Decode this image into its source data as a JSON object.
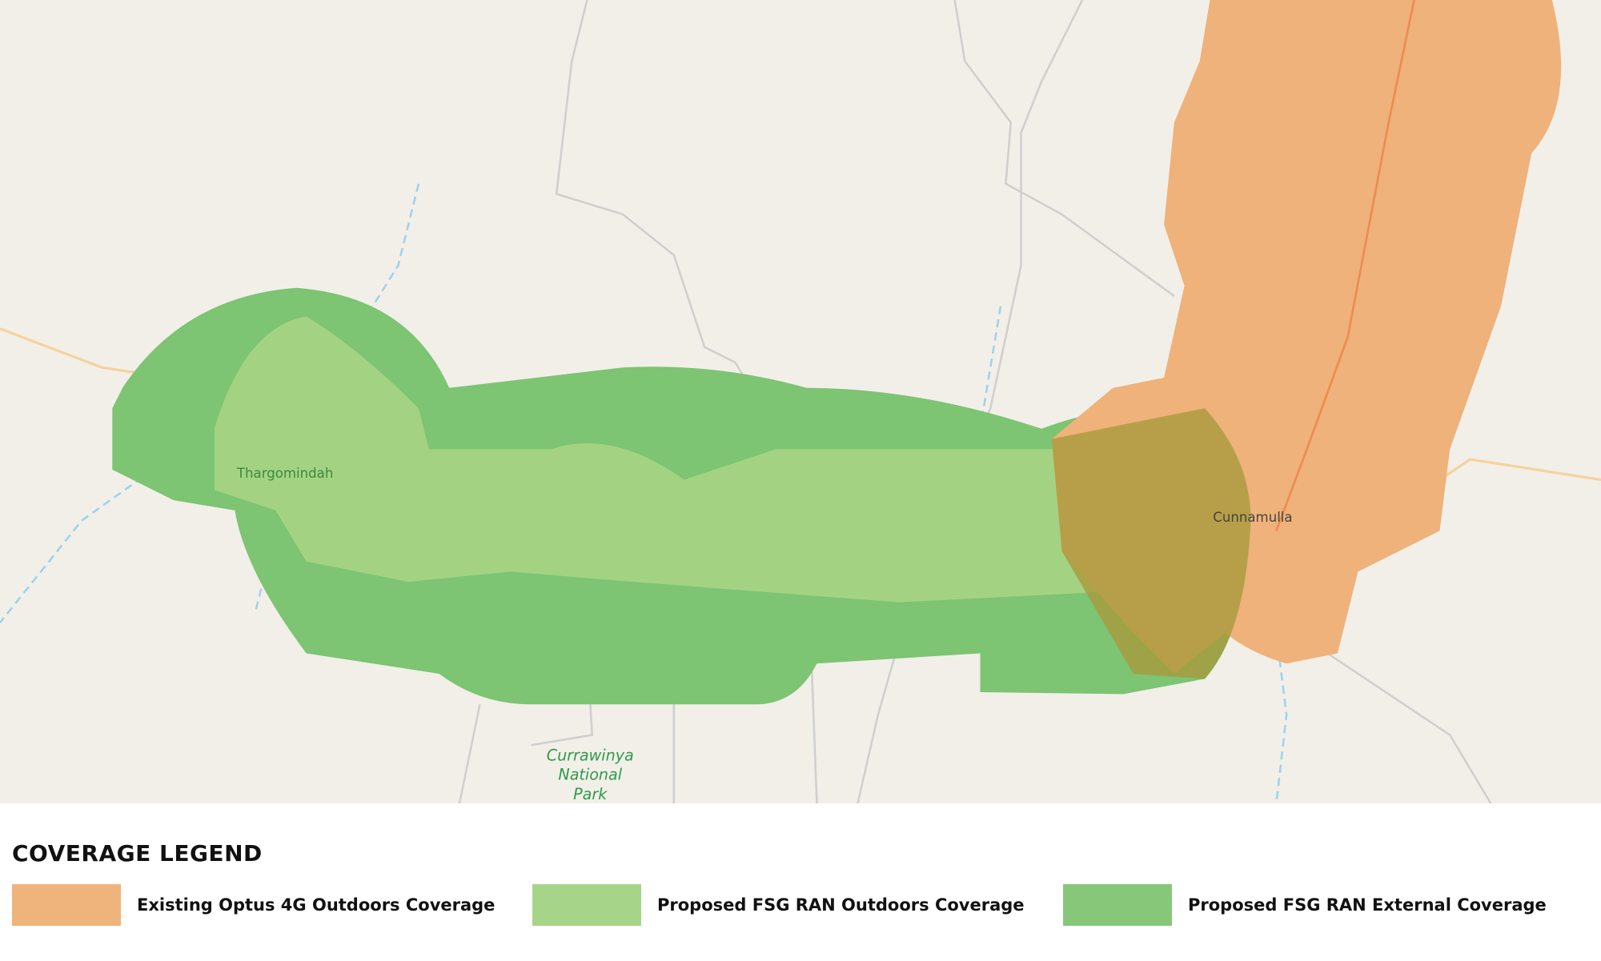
{
  "map": {
    "labels": {
      "thargomindah": "Thargomindah",
      "cunnamulla": "Cunnamulla",
      "park": [
        "Currawinya",
        "National",
        "Park"
      ]
    }
  },
  "legend": {
    "title": "COVERAGE LEGEND",
    "items": [
      {
        "label": "Existing Optus 4G Outdoors Coverage",
        "color": "#efb47c"
      },
      {
        "label": "Proposed FSG RAN Outdoors Coverage",
        "color": "#a6d58a"
      },
      {
        "label": "Proposed FSG RAN External Coverage",
        "color": "#86c77a"
      }
    ]
  }
}
